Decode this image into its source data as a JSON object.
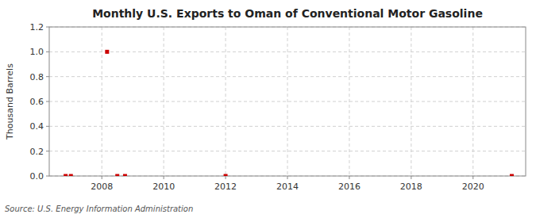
{
  "chart_data": {
    "type": "scatter",
    "title": "Monthly U.S. Exports to Oman of Conventional Motor Gasoline",
    "ylabel": "Thousand Barrels",
    "source": "Source: U.S. Energy Information Administration",
    "x": [
      2006.83,
      2007.0,
      2008.17,
      2008.5,
      2008.75,
      2012.0,
      2021.25
    ],
    "values": [
      0.0,
      0.0,
      1.0,
      0.0,
      0.0,
      0.0,
      0.0
    ],
    "color": "#cc0000",
    "marker": "square",
    "xlim": [
      2006.3,
      2021.7
    ],
    "xticks": [
      2008,
      2010,
      2012,
      2014,
      2016,
      2018,
      2020
    ],
    "ylim": [
      0.0,
      1.2
    ],
    "yticks": [
      {
        "value": 0.0,
        "label": "0.0"
      },
      0.2,
      0.4,
      0.6,
      0.8,
      {
        "value": 1.0,
        "label": "1.0"
      },
      1.2
    ],
    "grid": true
  }
}
